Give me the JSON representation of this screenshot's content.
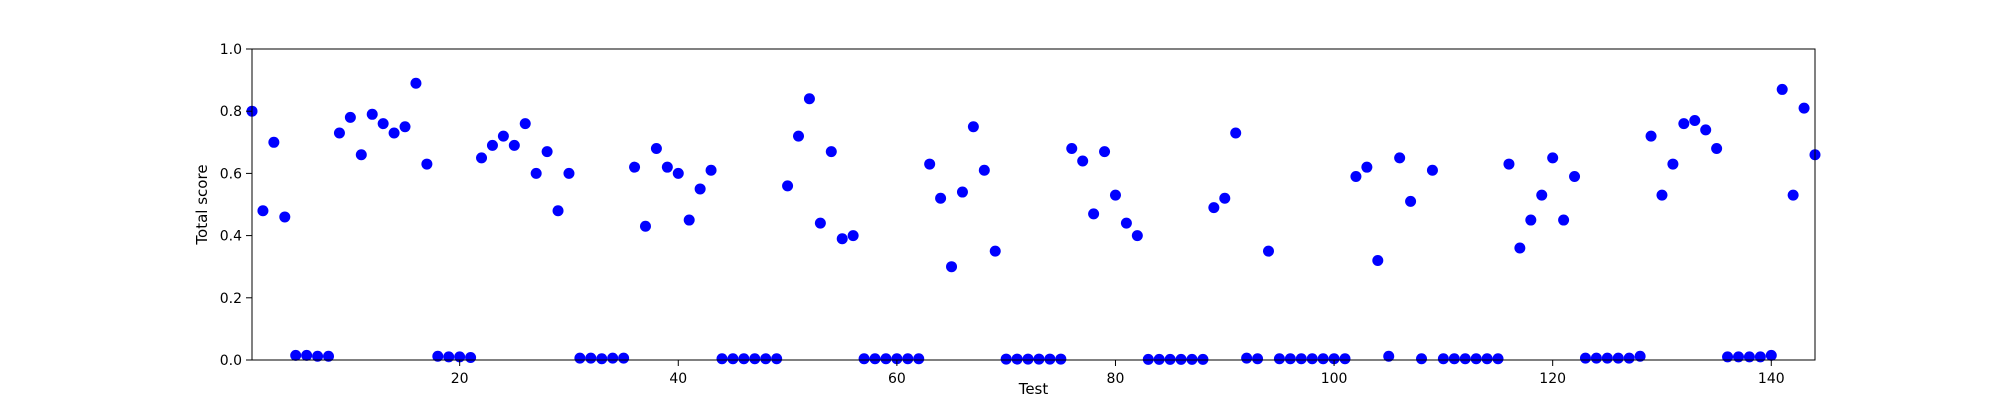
{
  "chart_data": {
    "type": "scatter",
    "xlabel": "Test",
    "ylabel": "Total score",
    "xlim": [
      1,
      144
    ],
    "ylim": [
      0,
      1.0
    ],
    "grid": false,
    "marker_color": "#0000ff",
    "x_ticks": [
      20,
      40,
      60,
      80,
      100,
      120,
      140
    ],
    "y_ticks": [
      0.0,
      0.2,
      0.4,
      0.6,
      0.8,
      1.0
    ],
    "x_tick_labels": [
      "20",
      "40",
      "60",
      "80",
      "100",
      "120",
      "140"
    ],
    "y_tick_labels": [
      "0.0",
      "0.2",
      "0.4",
      "0.6",
      "0.8",
      "1.0"
    ],
    "x": [
      1,
      2,
      3,
      4,
      5,
      6,
      7,
      8,
      9,
      10,
      11,
      12,
      13,
      14,
      15,
      16,
      17,
      18,
      19,
      20,
      21,
      22,
      23,
      24,
      25,
      26,
      27,
      28,
      29,
      30,
      31,
      32,
      33,
      34,
      35,
      36,
      37,
      38,
      39,
      40,
      41,
      42,
      43,
      44,
      45,
      46,
      47,
      48,
      49,
      50,
      51,
      52,
      53,
      54,
      55,
      56,
      57,
      58,
      59,
      60,
      61,
      62,
      63,
      64,
      65,
      66,
      67,
      68,
      69,
      70,
      71,
      72,
      73,
      74,
      75,
      76,
      77,
      78,
      79,
      80,
      81,
      82,
      83,
      84,
      85,
      86,
      87,
      88,
      89,
      90,
      91,
      92,
      93,
      94,
      95,
      96,
      97,
      98,
      99,
      100,
      101,
      102,
      103,
      104,
      105,
      106,
      107,
      108,
      109,
      110,
      111,
      112,
      113,
      114,
      115,
      116,
      117,
      118,
      119,
      120,
      121,
      122,
      123,
      124,
      125,
      126,
      127,
      128,
      129,
      130,
      131,
      132,
      133,
      134,
      135,
      136,
      137,
      138,
      139,
      140,
      141,
      142,
      143,
      144
    ],
    "y": [
      0.8,
      0.48,
      0.7,
      0.46,
      0.015,
      0.015,
      0.012,
      0.012,
      0.73,
      0.78,
      0.66,
      0.79,
      0.76,
      0.73,
      0.75,
      0.89,
      0.63,
      0.012,
      0.01,
      0.01,
      0.008,
      0.65,
      0.69,
      0.72,
      0.69,
      0.76,
      0.6,
      0.67,
      0.48,
      0.6,
      0.006,
      0.006,
      0.004,
      0.006,
      0.006,
      0.62,
      0.43,
      0.68,
      0.62,
      0.6,
      0.45,
      0.55,
      0.61,
      0.004,
      0.004,
      0.004,
      0.004,
      0.004,
      0.004,
      0.56,
      0.72,
      0.84,
      0.44,
      0.67,
      0.39,
      0.4,
      0.004,
      0.004,
      0.004,
      0.004,
      0.004,
      0.004,
      0.63,
      0.52,
      0.3,
      0.54,
      0.75,
      0.61,
      0.35,
      0.003,
      0.003,
      0.003,
      0.003,
      0.003,
      0.003,
      0.68,
      0.64,
      0.47,
      0.67,
      0.53,
      0.44,
      0.4,
      0.002,
      0.002,
      0.002,
      0.002,
      0.002,
      0.002,
      0.49,
      0.52,
      0.73,
      0.006,
      0.004,
      0.35,
      0.004,
      0.004,
      0.004,
      0.004,
      0.004,
      0.004,
      0.004,
      0.59,
      0.62,
      0.32,
      0.012,
      0.65,
      0.51,
      0.004,
      0.61,
      0.004,
      0.004,
      0.004,
      0.004,
      0.004,
      0.004,
      0.63,
      0.36,
      0.45,
      0.53,
      0.65,
      0.45,
      0.59,
      0.006,
      0.006,
      0.006,
      0.006,
      0.006,
      0.012,
      0.72,
      0.53,
      0.63,
      0.76,
      0.77,
      0.74,
      0.68,
      0.01,
      0.01,
      0.01,
      0.01,
      0.015,
      0.87,
      0.53,
      0.81,
      0.66
    ]
  }
}
